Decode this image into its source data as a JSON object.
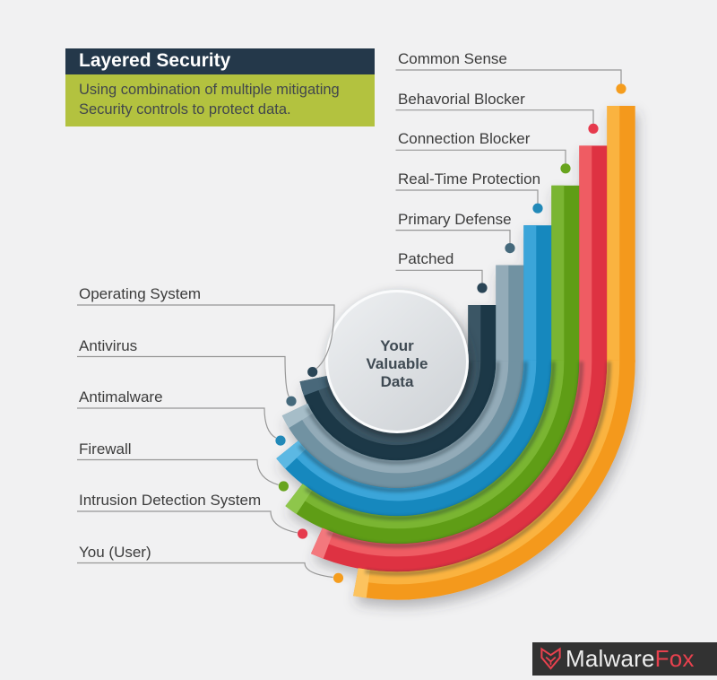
{
  "title": {
    "heading": "Layered Security",
    "subtitle": "Using combination of multiple mitigating Security controls to protect data."
  },
  "center": {
    "lines": [
      "Your",
      "Valuable",
      "Data"
    ]
  },
  "layers": [
    {
      "right_label": "Patched",
      "left_label": "Operating System",
      "base": "#1e3947",
      "light": "#3a5765",
      "cap": "#48687a",
      "dot": "#2a4556"
    },
    {
      "right_label": "Primary Defense",
      "left_label": "Antivirus",
      "base": "#7192a2",
      "light": "#93abb8",
      "cap": "#a6bdc8",
      "dot": "#45697c"
    },
    {
      "right_label": "Real-Time Protection",
      "left_label": "Antimalware",
      "base": "#1588be",
      "light": "#3ba5d9",
      "cap": "#5cb8e3",
      "dot": "#2289b8"
    },
    {
      "right_label": "Connection Blocker",
      "left_label": "Firewall",
      "base": "#5f9d16",
      "light": "#7ab531",
      "cap": "#8ec64b",
      "dot": "#68a41e"
    },
    {
      "right_label": "Behavorial Blocker",
      "left_label": "Intrusion Detection System",
      "base": "#de3342",
      "light": "#ef5b63",
      "cap": "#f3787d",
      "dot": "#e63a4d"
    },
    {
      "right_label": "Common Sense",
      "left_label": "You (User)",
      "base": "#f4991c",
      "light": "#fab340",
      "cap": "#fcc35e",
      "dot": "#f59d1e"
    }
  ],
  "logo": {
    "brand_primary": "Malware",
    "brand_accent": "Fox"
  }
}
